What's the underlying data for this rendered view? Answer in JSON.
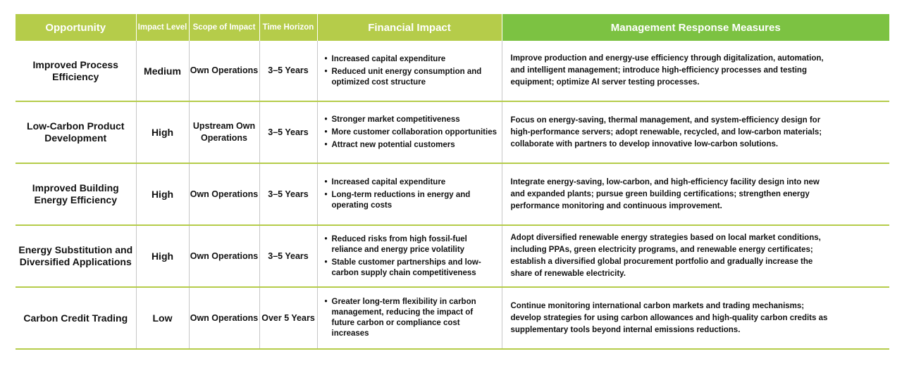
{
  "headers": {
    "opportunity": "Opportunity",
    "impact_level": "Impact Level",
    "scope": "Scope of Impact",
    "time_horizon": "Time Horizon",
    "financial_impact": "Financial Impact",
    "management": "Management Response Measures"
  },
  "rows": [
    {
      "opportunity": "Improved Process Efficiency",
      "impact_level": "Medium",
      "scope": "Own Operations",
      "time_horizon": "3–5 Years",
      "financial": [
        "Increased capital expenditure",
        "Reduced unit energy consumption and optimized cost structure"
      ],
      "management": "Improve production and energy-use efficiency through digitalization, automation, and intelligent management; introduce high-efficiency processes and testing equipment; optimize AI server testing processes."
    },
    {
      "opportunity": "Low-Carbon Product Development",
      "impact_level": "High",
      "scope": "Upstream Own Operations",
      "time_horizon": "3–5 Years",
      "financial": [
        "Stronger market competitiveness",
        "More customer collaboration opportunities",
        "Attract new potential customers"
      ],
      "management": "Focus on energy-saving, thermal management, and system-efficiency design for high-performance servers; adopt renewable, recycled, and low-carbon materials; collaborate with partners to develop innovative low-carbon solutions."
    },
    {
      "opportunity": "Improved Building Energy Efficiency",
      "impact_level": "High",
      "scope": "Own Operations",
      "time_horizon": "3–5 Years",
      "financial": [
        "Increased capital expenditure",
        "Long-term reductions in energy and operating costs"
      ],
      "management": "Integrate energy-saving, low-carbon, and high-efficiency facility design into new and expanded plants; pursue green building certifications; strengthen energy performance monitoring and continuous improvement."
    },
    {
      "opportunity": "Energy Substitution and Diversified Applications",
      "impact_level": "High",
      "scope": "Own Operations",
      "time_horizon": "3–5 Years",
      "financial": [
        "Reduced risks from high fossil-fuel reliance and energy price volatility",
        "Stable customer partnerships and low-carbon supply chain competitiveness"
      ],
      "management": "Adopt diversified renewable energy strategies based on local market conditions, including PPAs, green electricity programs, and renewable energy certificates; establish a diversified global procurement portfolio and gradually increase the share of renewable electricity."
    },
    {
      "opportunity": "Carbon Credit Trading",
      "impact_level": "Low",
      "scope": "Own Operations",
      "time_horizon": "Over 5 Years",
      "financial": [
        "Greater long-term flexibility in carbon management, reducing the impact of future carbon or compliance cost increases"
      ],
      "management": "Continue monitoring international carbon markets and trading mechanisms; develop strategies for using carbon allowances and high-quality carbon credits as supplementary tools beyond internal emissions reductions."
    }
  ],
  "colors": {
    "header_green": "#b5cc4a",
    "header_bright_green": "#7cc242",
    "row_divider": "#b5cc4a"
  }
}
